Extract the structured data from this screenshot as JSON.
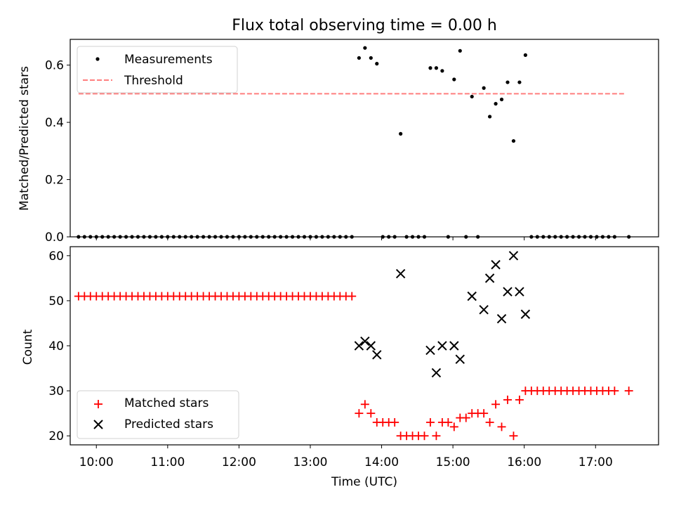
{
  "chart_data": [
    {
      "type": "scatter",
      "title": "Flux total observing time = 0.00 h",
      "xlabel": "",
      "ylabel": "Matched/Predicted stars",
      "ylim": [
        0,
        0.69
      ],
      "xlim": [
        "09:38",
        "17:53"
      ],
      "x_tick_labels": [
        "10:00",
        "11:00",
        "12:00",
        "13:00",
        "14:00",
        "15:00",
        "16:00",
        "17:00"
      ],
      "y_ticks": [
        0.0,
        0.2,
        0.4,
        0.6
      ],
      "y_tick_labels": [
        "0.0",
        "0.2",
        "0.4",
        "0.6"
      ],
      "legend": {
        "position": "top-left",
        "entries": [
          "Measurements",
          "Threshold"
        ]
      },
      "threshold": {
        "name": "Threshold",
        "value": 0.5,
        "x_start": "09:45",
        "x_end": "17:25",
        "color": "#ff7f7f",
        "style": "dashed"
      },
      "series": [
        {
          "name": "Measurements",
          "color": "#000000",
          "points": [
            [
              "09:45",
              0
            ],
            [
              "09:50",
              0
            ],
            [
              "09:55",
              0
            ],
            [
              "10:00",
              0
            ],
            [
              "10:05",
              0
            ],
            [
              "10:10",
              0
            ],
            [
              "10:15",
              0
            ],
            [
              "10:20",
              0
            ],
            [
              "10:25",
              0
            ],
            [
              "10:30",
              0
            ],
            [
              "10:35",
              0
            ],
            [
              "10:40",
              0
            ],
            [
              "10:45",
              0
            ],
            [
              "10:50",
              0
            ],
            [
              "10:55",
              0
            ],
            [
              "11:00",
              0
            ],
            [
              "11:05",
              0
            ],
            [
              "11:10",
              0
            ],
            [
              "11:15",
              0
            ],
            [
              "11:20",
              0
            ],
            [
              "11:25",
              0
            ],
            [
              "11:30",
              0
            ],
            [
              "11:35",
              0
            ],
            [
              "11:40",
              0
            ],
            [
              "11:45",
              0
            ],
            [
              "11:50",
              0
            ],
            [
              "11:55",
              0
            ],
            [
              "12:00",
              0
            ],
            [
              "12:05",
              0
            ],
            [
              "12:10",
              0
            ],
            [
              "12:15",
              0
            ],
            [
              "12:20",
              0
            ],
            [
              "12:25",
              0
            ],
            [
              "12:30",
              0
            ],
            [
              "12:35",
              0
            ],
            [
              "12:40",
              0
            ],
            [
              "12:45",
              0
            ],
            [
              "12:50",
              0
            ],
            [
              "12:55",
              0
            ],
            [
              "13:00",
              0
            ],
            [
              "13:05",
              0
            ],
            [
              "13:10",
              0
            ],
            [
              "13:15",
              0
            ],
            [
              "13:20",
              0
            ],
            [
              "13:25",
              0
            ],
            [
              "13:30",
              0
            ],
            [
              "13:35",
              0
            ],
            [
              "13:41",
              0.625
            ],
            [
              "13:46",
              0.66
            ],
            [
              "13:51",
              0.625
            ],
            [
              "13:56",
              0.605
            ],
            [
              "14:01",
              0
            ],
            [
              "14:06",
              0
            ],
            [
              "14:11",
              0
            ],
            [
              "14:16",
              0.36
            ],
            [
              "14:21",
              0
            ],
            [
              "14:26",
              0
            ],
            [
              "14:31",
              0
            ],
            [
              "14:36",
              0
            ],
            [
              "14:41",
              0.59
            ],
            [
              "14:46",
              0.59
            ],
            [
              "14:51",
              0.58
            ],
            [
              "14:56",
              0
            ],
            [
              "15:01",
              0.55
            ],
            [
              "15:06",
              0.65
            ],
            [
              "15:11",
              0
            ],
            [
              "15:16",
              0.49
            ],
            [
              "15:21",
              0
            ],
            [
              "15:26",
              0.52
            ],
            [
              "15:31",
              0.42
            ],
            [
              "15:36",
              0.465
            ],
            [
              "15:41",
              0.48
            ],
            [
              "15:46",
              0.54
            ],
            [
              "15:51",
              0.335
            ],
            [
              "15:56",
              0.54
            ],
            [
              "16:01",
              0.635
            ],
            [
              "16:06",
              0
            ],
            [
              "16:11",
              0
            ],
            [
              "16:16",
              0
            ],
            [
              "16:21",
              0
            ],
            [
              "16:26",
              0
            ],
            [
              "16:31",
              0
            ],
            [
              "16:36",
              0
            ],
            [
              "16:41",
              0
            ],
            [
              "16:46",
              0
            ],
            [
              "16:51",
              0
            ],
            [
              "16:56",
              0
            ],
            [
              "17:01",
              0
            ],
            [
              "17:06",
              0
            ],
            [
              "17:11",
              0
            ],
            [
              "17:16",
              0
            ],
            [
              "17:28",
              0
            ]
          ]
        }
      ]
    },
    {
      "type": "scatter",
      "title": "",
      "xlabel": "Time (UTC)",
      "ylabel": "Count",
      "ylim": [
        18,
        62
      ],
      "xlim": [
        "09:38",
        "17:53"
      ],
      "x_tick_labels": [
        "10:00",
        "11:00",
        "12:00",
        "13:00",
        "14:00",
        "15:00",
        "16:00",
        "17:00"
      ],
      "y_ticks": [
        20,
        30,
        40,
        50,
        60
      ],
      "y_tick_labels": [
        "20",
        "30",
        "40",
        "50",
        "60"
      ],
      "legend": {
        "position": "bottom-left",
        "entries": [
          "Matched stars",
          "Predicted stars"
        ]
      },
      "series": [
        {
          "name": "Matched stars",
          "marker": "plus",
          "color": "#ff0000",
          "points": [
            [
              "09:45",
              51
            ],
            [
              "09:50",
              51
            ],
            [
              "09:55",
              51
            ],
            [
              "10:00",
              51
            ],
            [
              "10:05",
              51
            ],
            [
              "10:10",
              51
            ],
            [
              "10:15",
              51
            ],
            [
              "10:20",
              51
            ],
            [
              "10:25",
              51
            ],
            [
              "10:30",
              51
            ],
            [
              "10:35",
              51
            ],
            [
              "10:40",
              51
            ],
            [
              "10:45",
              51
            ],
            [
              "10:50",
              51
            ],
            [
              "10:55",
              51
            ],
            [
              "11:00",
              51
            ],
            [
              "11:05",
              51
            ],
            [
              "11:10",
              51
            ],
            [
              "11:15",
              51
            ],
            [
              "11:20",
              51
            ],
            [
              "11:25",
              51
            ],
            [
              "11:30",
              51
            ],
            [
              "11:35",
              51
            ],
            [
              "11:40",
              51
            ],
            [
              "11:45",
              51
            ],
            [
              "11:50",
              51
            ],
            [
              "11:55",
              51
            ],
            [
              "12:00",
              51
            ],
            [
              "12:05",
              51
            ],
            [
              "12:10",
              51
            ],
            [
              "12:15",
              51
            ],
            [
              "12:20",
              51
            ],
            [
              "12:25",
              51
            ],
            [
              "12:30",
              51
            ],
            [
              "12:35",
              51
            ],
            [
              "12:40",
              51
            ],
            [
              "12:45",
              51
            ],
            [
              "12:50",
              51
            ],
            [
              "12:55",
              51
            ],
            [
              "13:00",
              51
            ],
            [
              "13:05",
              51
            ],
            [
              "13:10",
              51
            ],
            [
              "13:15",
              51
            ],
            [
              "13:20",
              51
            ],
            [
              "13:25",
              51
            ],
            [
              "13:30",
              51
            ],
            [
              "13:35",
              51
            ],
            [
              "13:41",
              25
            ],
            [
              "13:46",
              27
            ],
            [
              "13:51",
              25
            ],
            [
              "13:56",
              23
            ],
            [
              "14:01",
              23
            ],
            [
              "14:06",
              23
            ],
            [
              "14:11",
              23
            ],
            [
              "14:16",
              20
            ],
            [
              "14:21",
              20
            ],
            [
              "14:26",
              20
            ],
            [
              "14:31",
              20
            ],
            [
              "14:36",
              20
            ],
            [
              "14:41",
              23
            ],
            [
              "14:46",
              20
            ],
            [
              "14:51",
              23
            ],
            [
              "14:56",
              23
            ],
            [
              "15:01",
              22
            ],
            [
              "15:06",
              24
            ],
            [
              "15:11",
              24
            ],
            [
              "15:16",
              25
            ],
            [
              "15:21",
              25
            ],
            [
              "15:26",
              25
            ],
            [
              "15:31",
              23
            ],
            [
              "15:36",
              27
            ],
            [
              "15:41",
              22
            ],
            [
              "15:46",
              28
            ],
            [
              "15:51",
              20
            ],
            [
              "15:56",
              28
            ],
            [
              "16:01",
              30
            ],
            [
              "16:06",
              30
            ],
            [
              "16:11",
              30
            ],
            [
              "16:16",
              30
            ],
            [
              "16:21",
              30
            ],
            [
              "16:26",
              30
            ],
            [
              "16:31",
              30
            ],
            [
              "16:36",
              30
            ],
            [
              "16:41",
              30
            ],
            [
              "16:46",
              30
            ],
            [
              "16:51",
              30
            ],
            [
              "16:56",
              30
            ],
            [
              "17:01",
              30
            ],
            [
              "17:06",
              30
            ],
            [
              "17:11",
              30
            ],
            [
              "17:16",
              30
            ],
            [
              "17:28",
              30
            ]
          ]
        },
        {
          "name": "Predicted stars",
          "marker": "x",
          "color": "#000000",
          "points": [
            [
              "13:41",
              40
            ],
            [
              "13:46",
              41
            ],
            [
              "13:51",
              40
            ],
            [
              "13:56",
              38
            ],
            [
              "14:16",
              56
            ],
            [
              "14:41",
              39
            ],
            [
              "14:46",
              34
            ],
            [
              "14:51",
              40
            ],
            [
              "15:01",
              40
            ],
            [
              "15:06",
              37
            ],
            [
              "15:16",
              51
            ],
            [
              "15:26",
              48
            ],
            [
              "15:31",
              55
            ],
            [
              "15:36",
              58
            ],
            [
              "15:41",
              46
            ],
            [
              "15:46",
              52
            ],
            [
              "15:51",
              60
            ],
            [
              "15:56",
              52
            ],
            [
              "16:01",
              47
            ]
          ]
        }
      ]
    }
  ]
}
